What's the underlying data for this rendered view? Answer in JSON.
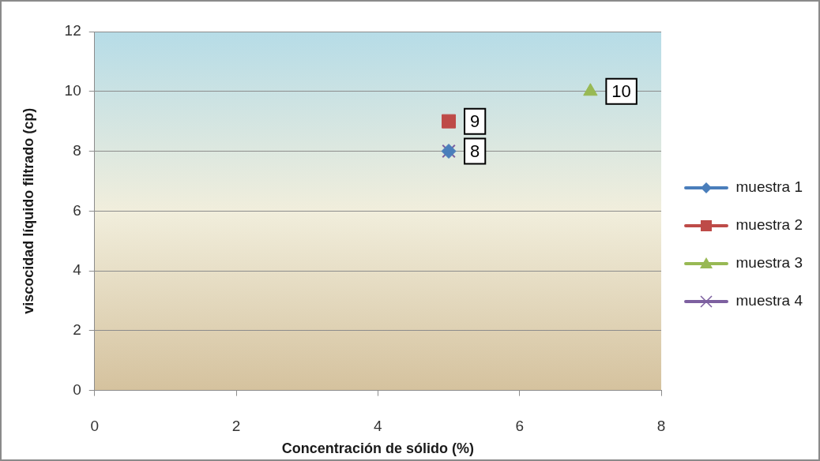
{
  "chart_data": {
    "type": "scatter",
    "xlabel": "Concentración de sólido (%)",
    "ylabel": "viscocidad líquido filtrado (cp)",
    "xlim": [
      0,
      8
    ],
    "xticks": [
      0,
      2,
      4,
      6,
      8
    ],
    "ylim": [
      0,
      12
    ],
    "yticks": [
      0,
      2,
      4,
      6,
      8,
      10,
      12
    ],
    "grid": "y",
    "legend": "right",
    "x": [
      5,
      7
    ],
    "series": [
      {
        "name": "muestra 1",
        "color": "#4a7ebb",
        "marker": "diamond",
        "values": [
          8,
          null
        ],
        "value_labels": [
          "8",
          null
        ]
      },
      {
        "name": "muestra 2",
        "color": "#be4b48",
        "marker": "square",
        "values": [
          9,
          null
        ],
        "value_labels": [
          "9",
          null
        ]
      },
      {
        "name": "muestra 3",
        "color": "#98b954",
        "marker": "triangle",
        "values": [
          null,
          10
        ],
        "value_labels": [
          null,
          "10"
        ]
      },
      {
        "name": "muestra 4",
        "color": "#7d60a0",
        "marker": "cross",
        "values": [
          8,
          null
        ],
        "value_labels": [
          null,
          null
        ]
      }
    ]
  }
}
